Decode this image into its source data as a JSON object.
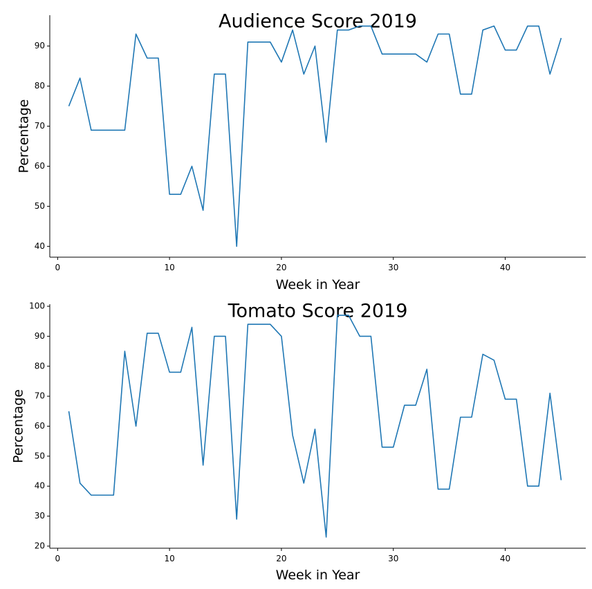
{
  "chart_data": [
    {
      "type": "line",
      "title": "Audience Score 2019",
      "xlabel": "Week in Year",
      "ylabel": "Percentage",
      "xlim": [
        -0.7,
        47.2
      ],
      "ylim": [
        37.3,
        97.7
      ],
      "xticks": [
        0,
        10,
        20,
        30,
        40
      ],
      "yticks": [
        40,
        50,
        60,
        70,
        80,
        90
      ],
      "grid": false,
      "line_color": "#1f77b4",
      "x": [
        1,
        2,
        3,
        4,
        5,
        6,
        7,
        8,
        9,
        10,
        11,
        12,
        13,
        14,
        15,
        16,
        17,
        18,
        19,
        20,
        21,
        22,
        23,
        24,
        25,
        26,
        27,
        28,
        29,
        30,
        31,
        32,
        33,
        34,
        35,
        36,
        37,
        38,
        39,
        40,
        41,
        42,
        43,
        44,
        45
      ],
      "series": [
        {
          "values": [
            75,
            82,
            69,
            69,
            69,
            69,
            93,
            87,
            87,
            53,
            53,
            60,
            49,
            83,
            83,
            40,
            91,
            91,
            91,
            86,
            94,
            83,
            90,
            66,
            94,
            94,
            95,
            95,
            88,
            88,
            88,
            88,
            86,
            93,
            93,
            78,
            78,
            94,
            95,
            89,
            89,
            95,
            95,
            83,
            92
          ]
        }
      ]
    },
    {
      "type": "line",
      "title": "Tomato Score 2019",
      "xlabel": "Week in Year",
      "ylabel": "Percentage",
      "xlim": [
        -0.7,
        47.2
      ],
      "ylim": [
        19.3,
        100.7
      ],
      "xticks": [
        0,
        10,
        20,
        30,
        40
      ],
      "yticks": [
        20,
        30,
        40,
        50,
        60,
        70,
        80,
        90,
        100
      ],
      "grid": false,
      "line_color": "#1f77b4",
      "x": [
        1,
        2,
        3,
        4,
        5,
        6,
        7,
        8,
        9,
        10,
        11,
        12,
        13,
        14,
        15,
        16,
        17,
        18,
        19,
        20,
        21,
        22,
        23,
        24,
        25,
        26,
        27,
        28,
        29,
        30,
        31,
        32,
        33,
        34,
        35,
        36,
        37,
        38,
        39,
        40,
        41,
        42,
        43,
        44,
        45
      ],
      "series": [
        {
          "values": [
            65,
            41,
            37,
            37,
            37,
            85,
            60,
            91,
            91,
            78,
            78,
            93,
            47,
            90,
            90,
            29,
            94,
            94,
            94,
            90,
            57,
            41,
            59,
            23,
            97,
            97,
            90,
            90,
            53,
            53,
            67,
            67,
            79,
            39,
            39,
            63,
            63,
            84,
            82,
            69,
            69,
            40,
            40,
            71,
            42
          ]
        }
      ]
    }
  ]
}
